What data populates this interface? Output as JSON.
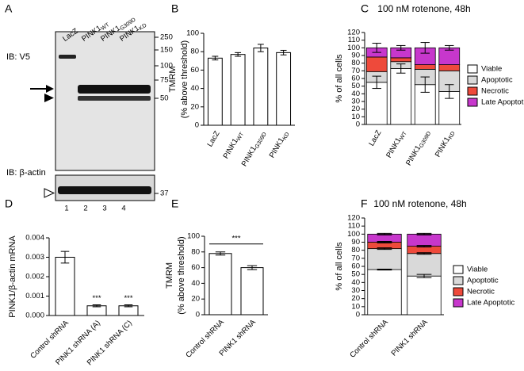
{
  "blot": {
    "panel": "A",
    "probes": [
      "IB: V5",
      "IB: β-actin"
    ],
    "lane_labels": [
      "LacZ",
      "PINK1",
      "PINK1",
      "PINK1"
    ],
    "lane_subscripts": [
      null,
      "WT",
      "G309D",
      "KD"
    ],
    "lane_numbers": [
      1,
      2,
      3,
      4
    ],
    "markers": [
      250,
      150,
      100,
      75,
      50,
      37
    ]
  },
  "chart_data": [
    {
      "type": "bar",
      "panel": "B",
      "ylabel": [
        "TMRM",
        "(% above threshold)"
      ],
      "categories": [
        "LacZ",
        "PINK1",
        "PINK1",
        "PINK1"
      ],
      "category_subscripts": [
        null,
        "WT",
        "G309D",
        "KD"
      ],
      "values": [
        73,
        77,
        84,
        79
      ],
      "errors": [
        2,
        2,
        4,
        2.5
      ],
      "color": "#ffffff",
      "ylim": [
        0,
        100
      ],
      "yticks": [
        0,
        20,
        40,
        60,
        80,
        100
      ]
    },
    {
      "type": "stacked_bar",
      "panel": "C",
      "title": "100 nM rotenone, 48h",
      "ylabel": [
        "% of all cells"
      ],
      "categories": [
        "LacZ",
        "PINK1",
        "PINK1",
        "PINK1"
      ],
      "category_subscripts": [
        null,
        "WT",
        "G309D",
        "KD"
      ],
      "series": [
        {
          "name": "Viable",
          "color": "#ffffff",
          "values": [
            55,
            73,
            52,
            43
          ],
          "errors": [
            8,
            6,
            10,
            9
          ]
        },
        {
          "name": "Apoptotic",
          "color": "#d9d9d9",
          "values": [
            14,
            9,
            20,
            27
          ],
          "errors": [
            null,
            null,
            null,
            null
          ]
        },
        {
          "name": "Necrotic",
          "color": "#ee4a3b",
          "values": [
            19,
            5,
            6,
            8
          ],
          "errors": [
            null,
            null,
            null,
            null
          ]
        },
        {
          "name": "Late Apoptotic",
          "color": "#c737cc",
          "values": [
            12,
            13,
            22,
            22
          ],
          "errors": [
            6,
            3,
            7,
            3
          ]
        }
      ],
      "ylim": [
        0,
        120
      ],
      "yticks": [
        0,
        10,
        20,
        30,
        40,
        50,
        60,
        70,
        80,
        90,
        100,
        110,
        120
      ]
    },
    {
      "type": "bar",
      "panel": "D",
      "ylabel": [
        "PINK1/β-actin mRNA"
      ],
      "categories": [
        "Control shRNA",
        "PINK1 shRNA (A)",
        "PINK1 shRNA (C)"
      ],
      "values": [
        0.003,
        0.0005,
        0.0005
      ],
      "errors": [
        0.0003,
        5e-05,
        5e-05
      ],
      "color": "#ffffff",
      "significance": [
        null,
        "***",
        "***"
      ],
      "ylim": [
        0,
        0.004
      ],
      "yticks": [
        {
          "value": 0,
          "label": "0.000"
        },
        {
          "value": 0.001,
          "label": "0.001"
        },
        {
          "value": 0.002,
          "label": "0.002"
        },
        {
          "value": 0.003,
          "label": "0.003"
        },
        {
          "value": 0.004,
          "label": "0.004"
        }
      ]
    },
    {
      "type": "bar",
      "panel": "E",
      "ylabel": [
        "TMRM",
        "(% above threshold)"
      ],
      "categories": [
        "Control shRNA",
        "PINK1 shRNA"
      ],
      "values": [
        78,
        60
      ],
      "errors": [
        2,
        2.5
      ],
      "color": "#ffffff",
      "annotation": "***",
      "ylim": [
        0,
        100
      ],
      "yticks": [
        0,
        20,
        40,
        60,
        80,
        100
      ]
    },
    {
      "type": "stacked_bar",
      "panel": "F",
      "title": "100 nM rotenone, 48h",
      "ylabel": [
        "% of all cells"
      ],
      "categories": [
        "Control shRNA",
        "PINK1 shRNA"
      ],
      "series": [
        {
          "name": "Viable",
          "color": "#ffffff",
          "values": [
            56,
            48
          ],
          "errors": [
            0.5,
            2
          ]
        },
        {
          "name": "Apoptotic",
          "color": "#d9d9d9",
          "values": [
            26,
            28
          ],
          "errors": [
            1,
            1
          ]
        },
        {
          "name": "Necrotic",
          "color": "#ee4a3b",
          "values": [
            8,
            9
          ],
          "errors": [
            1,
            1
          ]
        },
        {
          "name": "Late Apoptotic",
          "color": "#c737cc",
          "values": [
            10,
            15
          ],
          "errors": [
            1,
            1
          ]
        }
      ],
      "ylim": [
        0,
        120
      ],
      "yticks": [
        0,
        10,
        20,
        30,
        40,
        50,
        60,
        70,
        80,
        90,
        100,
        110,
        120
      ]
    }
  ]
}
